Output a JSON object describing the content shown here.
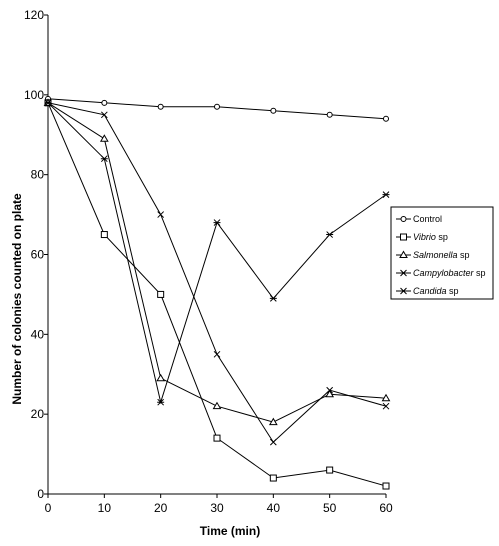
{
  "chart_data": {
    "type": "line",
    "title": "",
    "xlabel": "Time (min)",
    "ylabel": "Number of colonies counted on plate",
    "x": [
      0,
      10,
      20,
      30,
      40,
      50,
      60
    ],
    "xlim": [
      0,
      60
    ],
    "ylim": [
      0,
      120
    ],
    "xticks": [
      0,
      10,
      20,
      30,
      40,
      50,
      60
    ],
    "yticks": [
      0,
      20,
      40,
      60,
      80,
      100,
      120
    ],
    "grid": false,
    "legend_position": "right",
    "series": [
      {
        "name": "Control",
        "genus": "Control",
        "suffix": "",
        "italic": false,
        "marker": "circle",
        "values": [
          99,
          98,
          97,
          97,
          96,
          95,
          94
        ]
      },
      {
        "name": "Vibrio sp",
        "genus": "Vibrio",
        "suffix": " sp",
        "italic": true,
        "marker": "square",
        "values": [
          98,
          65,
          50,
          14,
          4,
          6,
          2
        ]
      },
      {
        "name": "Salmonella sp",
        "genus": "Salmonella",
        "suffix": " sp",
        "italic": true,
        "marker": "triangle",
        "values": [
          98,
          89,
          29,
          22,
          18,
          25,
          24
        ]
      },
      {
        "name": "Campylobacter sp",
        "genus": "Campylobacter",
        "suffix": " sp",
        "italic": true,
        "marker": "x",
        "values": [
          98,
          95,
          70,
          35,
          13,
          26,
          22
        ]
      },
      {
        "name": "Candida sp",
        "genus": "Candida",
        "suffix": " sp",
        "italic": true,
        "marker": "asterisk",
        "values": [
          98,
          84,
          23,
          68,
          49,
          65,
          75
        ]
      }
    ]
  }
}
